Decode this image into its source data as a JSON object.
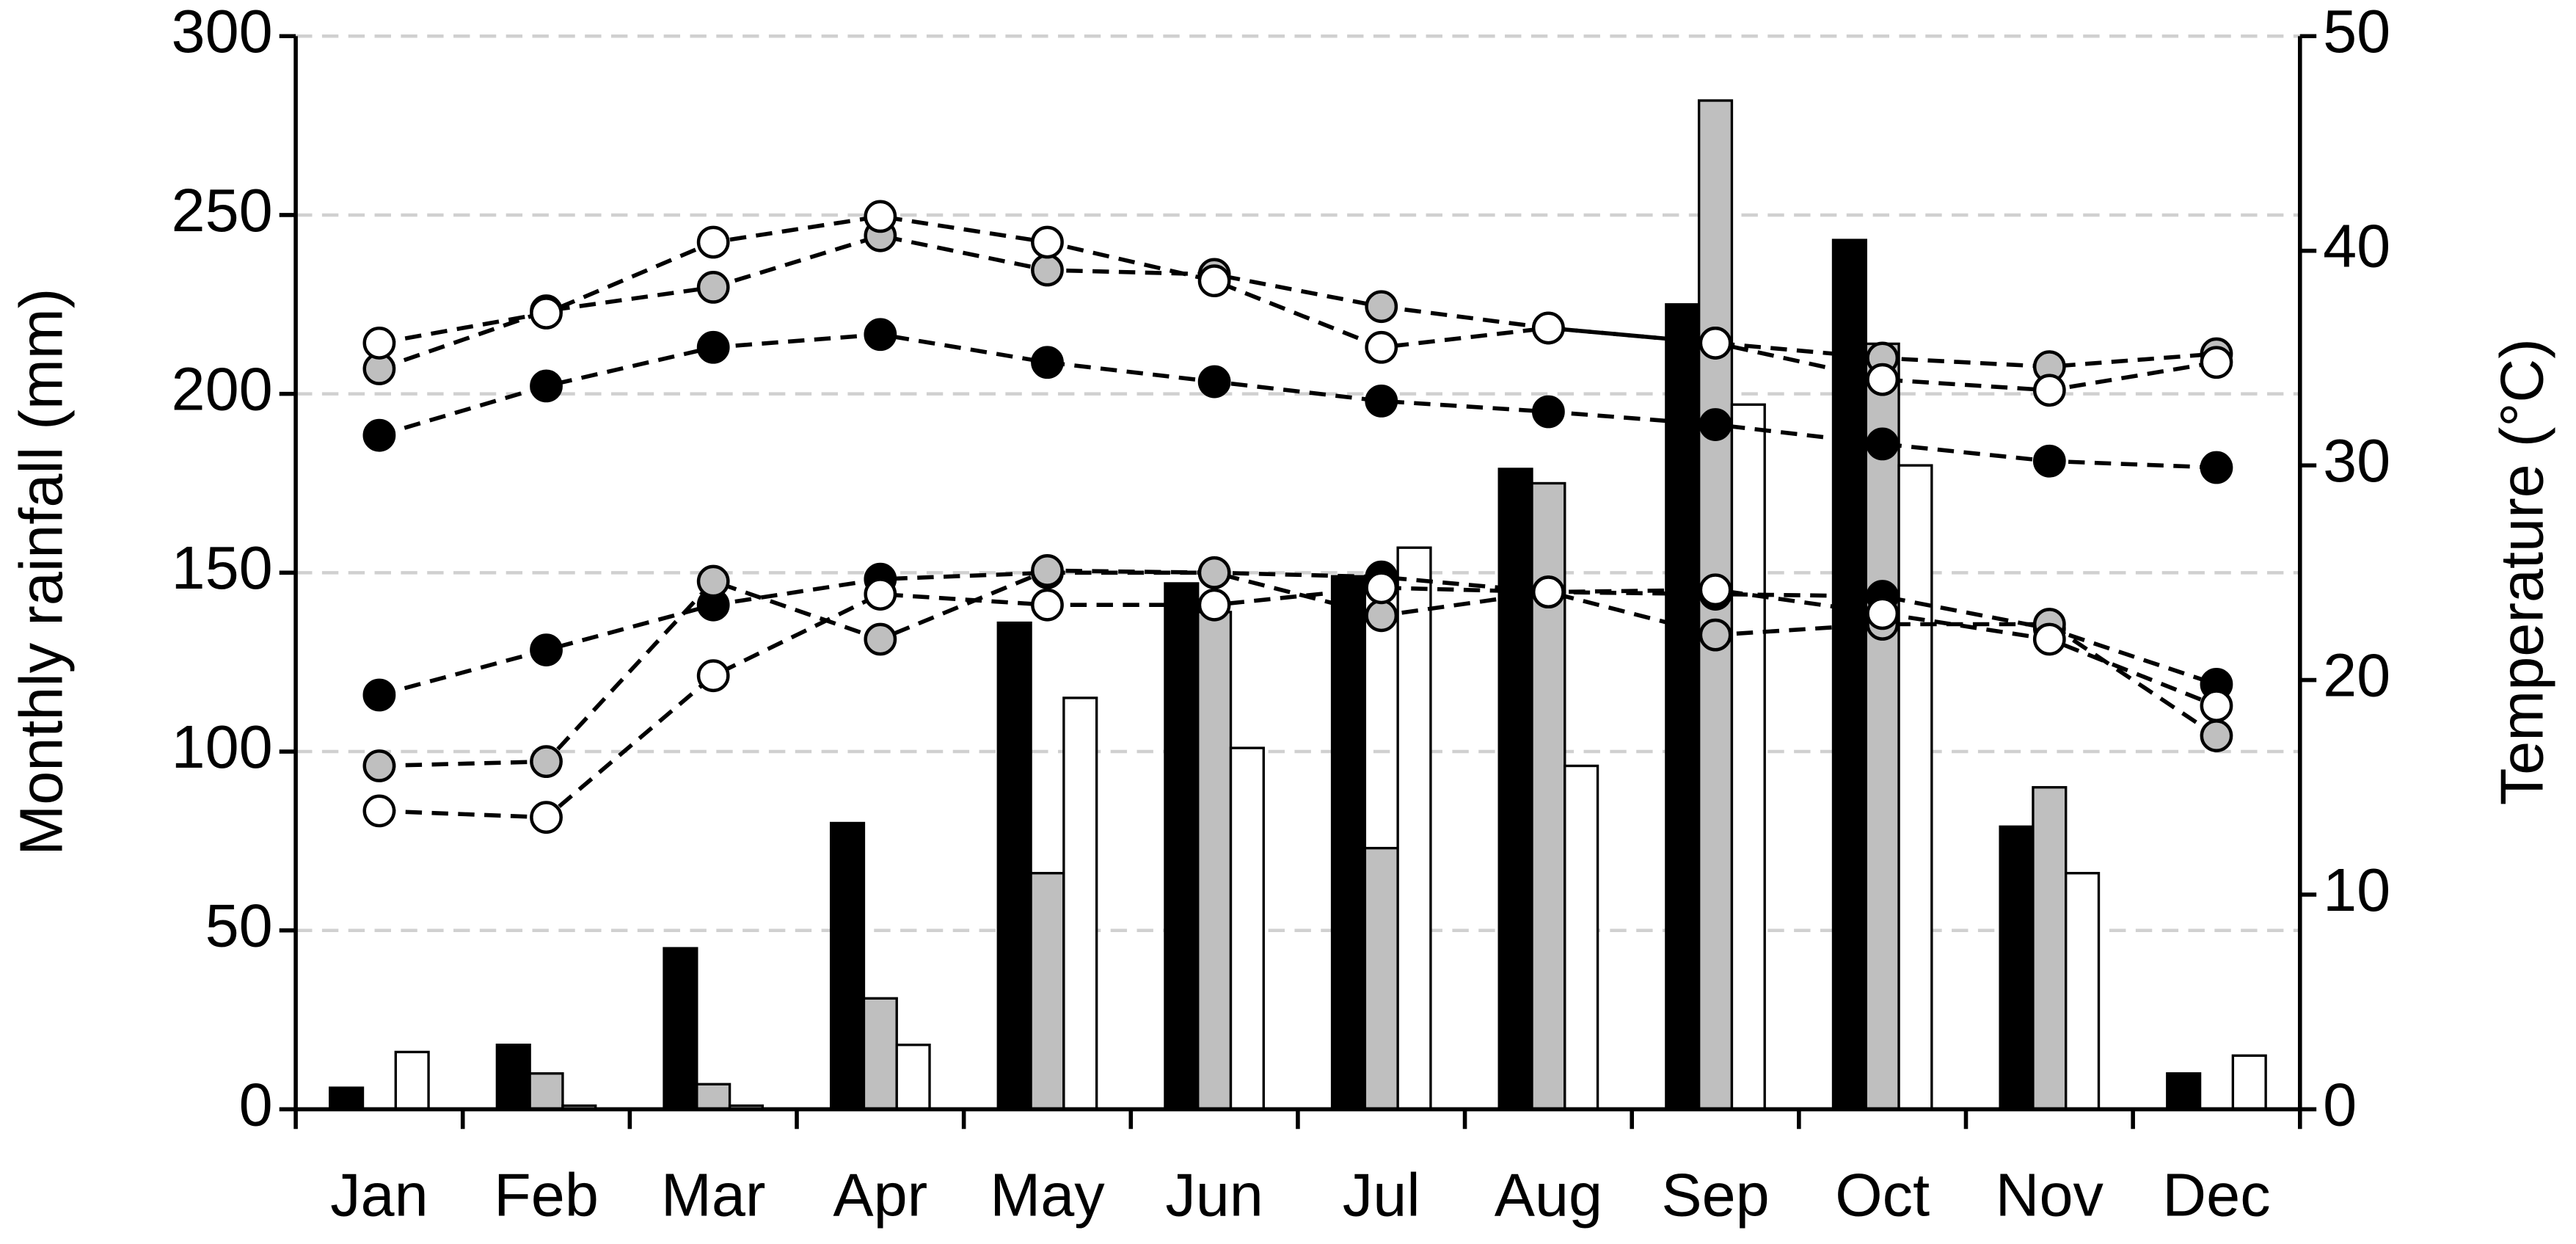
{
  "chart_data": {
    "type": "bar",
    "categories": [
      "Jan",
      "Feb",
      "Mar",
      "Apr",
      "May",
      "Jun",
      "Jul",
      "Aug",
      "Sep",
      "Oct",
      "Nov",
      "Dec"
    ],
    "ylabel": "Monthly rainfall (mm)",
    "y2label": "Temperature (°C)",
    "ylim": [
      0,
      300
    ],
    "yticks": [
      0,
      50,
      100,
      150,
      200,
      250,
      300
    ],
    "y2lim": [
      0,
      50
    ],
    "y2ticks": [
      0,
      10,
      20,
      30,
      40,
      50
    ],
    "grid": true,
    "series": [
      {
        "type": "bar",
        "color": "#000000",
        "values": [
          6,
          18,
          45,
          80,
          136,
          147,
          149,
          179,
          225,
          243,
          79,
          10
        ]
      },
      {
        "type": "bar",
        "color": "#bfbfbf",
        "values": [
          0,
          10,
          7,
          31,
          66,
          139,
          73,
          175,
          282,
          214,
          90,
          0
        ]
      },
      {
        "type": "bar",
        "color": "#ffffff",
        "values": [
          16,
          1,
          1,
          18,
          115,
          101,
          157,
          96,
          197,
          180,
          66,
          15
        ]
      },
      {
        "type": "line",
        "axis": "y2",
        "color": "#000000",
        "values": [
          31.4,
          33.7,
          35.5,
          36.1,
          34.8,
          33.9,
          33.0,
          32.5,
          31.9,
          31.0,
          30.2,
          29.9
        ]
      },
      {
        "type": "line",
        "axis": "y2",
        "color": "#bfbfbf",
        "values": [
          34.5,
          37.2,
          38.3,
          40.7,
          39.1,
          38.9,
          37.4,
          36.4,
          35.7,
          35.0,
          34.6,
          35.2
        ]
      },
      {
        "type": "line",
        "axis": "y2",
        "color": "#ffffff",
        "values": [
          35.7,
          37.1,
          40.4,
          41.6,
          40.4,
          38.6,
          35.5,
          36.4,
          35.7,
          34.0,
          33.5,
          34.8
        ]
      },
      {
        "type": "line",
        "axis": "y2",
        "color": "#000000",
        "values": [
          19.3,
          21.4,
          23.5,
          24.7,
          25.0,
          25.0,
          24.8,
          24.1,
          24.0,
          23.9,
          22.4,
          19.8
        ]
      },
      {
        "type": "line",
        "axis": "y2",
        "color": "#bfbfbf",
        "values": [
          16.0,
          16.2,
          24.6,
          21.9,
          25.1,
          25.0,
          23.0,
          24.1,
          22.1,
          22.6,
          22.6,
          17.4
        ]
      },
      {
        "type": "line",
        "axis": "y2",
        "color": "#ffffff",
        "values": [
          13.9,
          13.6,
          20.2,
          24.0,
          23.5,
          23.5,
          24.3,
          24.1,
          24.2,
          23.1,
          21.9,
          18.8
        ]
      }
    ]
  }
}
